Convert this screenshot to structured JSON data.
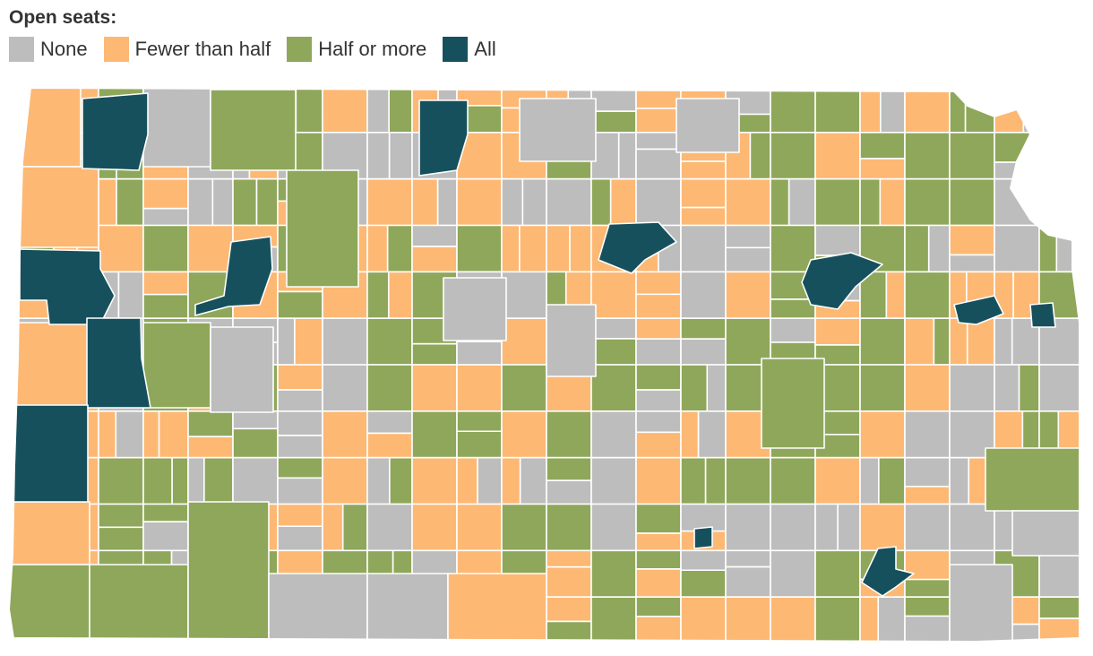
{
  "legend": {
    "title": "Open seats:",
    "categories": [
      {
        "key": "none",
        "label": "None",
        "color": "#bdbdbd"
      },
      {
        "key": "fewer",
        "label": "Fewer than half",
        "color": "#fdb874"
      },
      {
        "key": "half",
        "label": "Half or more",
        "color": "#8fa75a"
      },
      {
        "key": "all",
        "label": "All",
        "color": "#16505d"
      }
    ]
  },
  "map": {
    "region": "Kansas",
    "unit": "school district",
    "dominant_categories": [
      "none",
      "fewer",
      "half"
    ],
    "highlighted_category": "all"
  }
}
